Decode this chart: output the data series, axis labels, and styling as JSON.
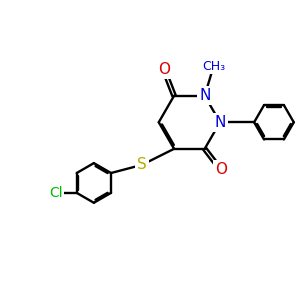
{
  "bg_color": "#ffffff",
  "atom_colors": {
    "C": "#000000",
    "N": "#0000dd",
    "O": "#dd0000",
    "S": "#bbaa00",
    "Cl": "#00bb00"
  },
  "bond_lw": 1.7,
  "dbo": 0.06,
  "figsize": [
    3.0,
    3.0
  ],
  "dpi": 100,
  "xlim": [
    0,
    10
  ],
  "ylim": [
    0,
    10
  ]
}
